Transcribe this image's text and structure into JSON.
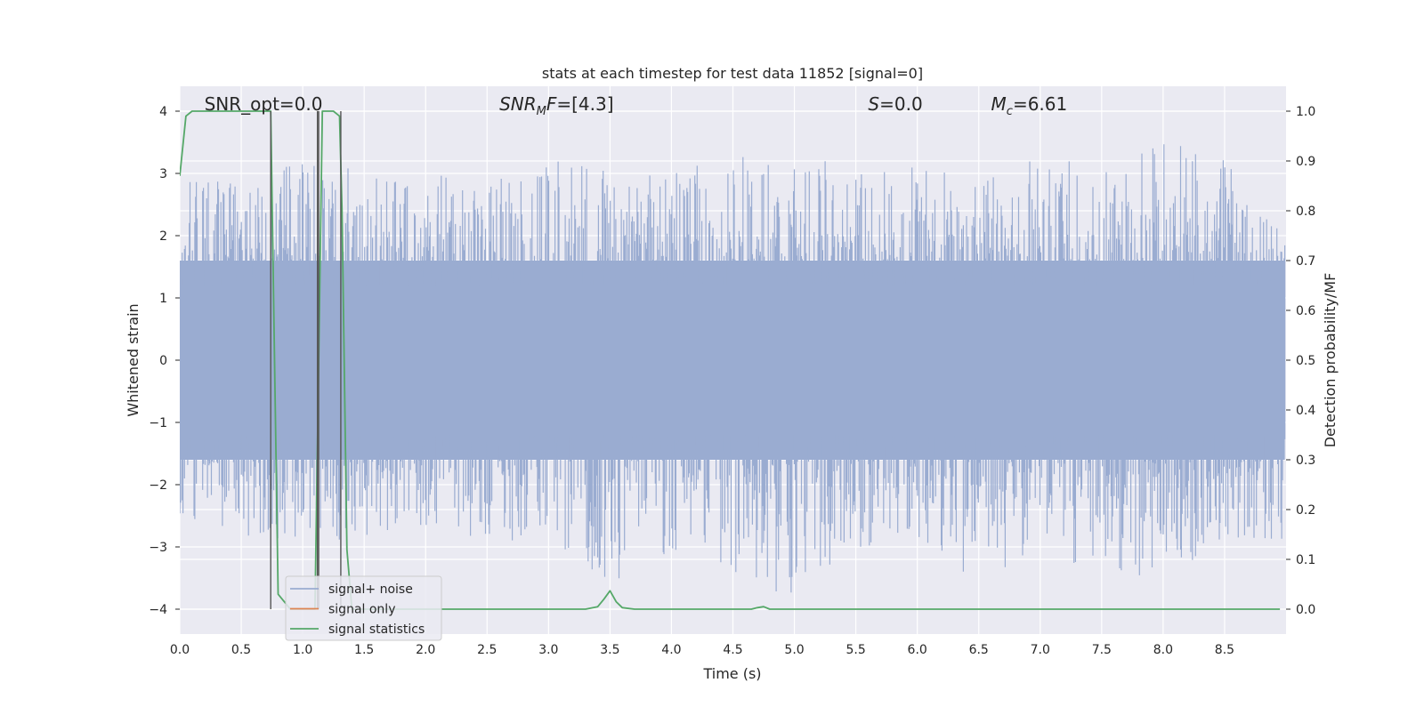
{
  "chart_data": {
    "type": "line",
    "title": "stats at each timestep for test data 11852 [signal=0]",
    "xlabel": "Time (s)",
    "ylabel": "Whitened strain",
    "y2label": "Detection probability/MF",
    "xlim": [
      0.0,
      9.0
    ],
    "ylim": [
      -4.4,
      4.4
    ],
    "y2lim": [
      -0.05,
      1.05
    ],
    "xticks": [
      0.0,
      0.5,
      1.0,
      1.5,
      2.0,
      2.5,
      3.0,
      3.5,
      4.0,
      4.5,
      5.0,
      5.5,
      6.0,
      6.5,
      7.0,
      7.5,
      8.0,
      8.5
    ],
    "xtick_labels": [
      "0.0",
      "0.5",
      "1.0",
      "1.5",
      "2.0",
      "2.5",
      "3.0",
      "3.5",
      "4.0",
      "4.5",
      "5.0",
      "5.5",
      "6.0",
      "6.5",
      "7.0",
      "7.5",
      "8.0",
      "8.5"
    ],
    "yticks": [
      -4,
      -3,
      -2,
      -1,
      0,
      1,
      2,
      3,
      4
    ],
    "ytick_labels": [
      "−4",
      "−3",
      "−2",
      "−1",
      "0",
      "1",
      "2",
      "3",
      "4"
    ],
    "y2ticks": [
      0.0,
      0.1,
      0.2,
      0.3,
      0.4,
      0.5,
      0.6,
      0.7,
      0.8,
      0.9,
      1.0
    ],
    "y2tick_labels": [
      "0.0",
      "0.1",
      "0.2",
      "0.3",
      "0.4",
      "0.5",
      "0.6",
      "0.7",
      "0.8",
      "0.9",
      "1.0"
    ],
    "grid": true,
    "legend_position": "lower-left",
    "annotations": [
      {
        "text_html": "SNR_opt=0.0",
        "x": 0.2
      },
      {
        "text_html": "<tspan font-style=\"italic\">SNR</tspan><tspan font-style=\"italic\" font-size=\"13\" dy=\"5\">M</tspan><tspan font-style=\"italic\" dy=\"-5\">F</tspan>=[4.3]",
        "x": 2.6
      },
      {
        "text_html": "<tspan font-style=\"italic\">S</tspan>=0.0",
        "x": 5.6
      },
      {
        "text_html": "<tspan font-style=\"italic\">M</tspan><tspan font-style=\"italic\" font-size=\"13\" dy=\"5\">c</tspan><tspan dy=\"-5\">=6.61</tspan>",
        "x": 6.6
      }
    ],
    "series": [
      {
        "name": "signal+ noise",
        "color": "#9aacd1",
        "axis": "left",
        "style": "noise",
        "x_start": 0.0,
        "x_end": 8.99,
        "band_core": [
          -1.6,
          1.6
        ],
        "envelope": [
          {
            "x": 0.0,
            "lo": -2.5,
            "hi": 3.0
          },
          {
            "x": 0.5,
            "lo": -2.8,
            "hi": 2.9
          },
          {
            "x": 1.0,
            "lo": -3.0,
            "hi": 3.2
          },
          {
            "x": 1.5,
            "lo": -2.9,
            "hi": 3.1
          },
          {
            "x": 2.0,
            "lo": -2.7,
            "hi": 3.0
          },
          {
            "x": 2.5,
            "lo": -2.9,
            "hi": 2.9
          },
          {
            "x": 3.0,
            "lo": -2.9,
            "hi": 3.3
          },
          {
            "x": 3.5,
            "lo": -3.6,
            "hi": 3.1
          },
          {
            "x": 4.0,
            "lo": -3.1,
            "hi": 3.0
          },
          {
            "x": 4.5,
            "lo": -3.4,
            "hi": 3.3
          },
          {
            "x": 5.0,
            "lo": -3.9,
            "hi": 3.2
          },
          {
            "x": 5.5,
            "lo": -3.0,
            "hi": 3.2
          },
          {
            "x": 6.0,
            "lo": -3.1,
            "hi": 3.2
          },
          {
            "x": 6.5,
            "lo": -3.5,
            "hi": 3.0
          },
          {
            "x": 7.0,
            "lo": -3.1,
            "hi": 3.3
          },
          {
            "x": 7.5,
            "lo": -3.4,
            "hi": 3.1
          },
          {
            "x": 8.0,
            "lo": -3.5,
            "hi": 3.5
          },
          {
            "x": 8.5,
            "lo": -3.0,
            "hi": 3.4
          },
          {
            "x": 8.99,
            "lo": -2.9,
            "hi": 2.0
          }
        ]
      },
      {
        "name": "signal only",
        "color": "#dd8452",
        "axis": "left",
        "style": "line",
        "x": [],
        "y": []
      },
      {
        "name": "signal statistics",
        "color": "#55a868",
        "axis": "right",
        "style": "line",
        "x": [
          0.0,
          0.05,
          0.1,
          0.2,
          0.3,
          0.4,
          0.5,
          0.6,
          0.7,
          0.74,
          0.8,
          0.9,
          1.0,
          1.05,
          1.1,
          1.13,
          1.16,
          1.2,
          1.25,
          1.3,
          1.32,
          1.36,
          1.4,
          1.5,
          2.0,
          2.5,
          3.0,
          3.3,
          3.4,
          3.45,
          3.5,
          3.55,
          3.6,
          3.7,
          4.0,
          4.5,
          4.65,
          4.7,
          4.75,
          4.8,
          4.9,
          5.0,
          6.0,
          7.0,
          8.0,
          8.95
        ],
        "y": [
          0.87,
          0.99,
          1.0,
          1.0,
          1.0,
          1.0,
          1.0,
          1.0,
          1.0,
          1.0,
          0.03,
          0.0,
          0.0,
          0.0,
          0.0,
          0.5,
          1.0,
          1.0,
          1.0,
          0.99,
          0.8,
          0.12,
          0.0,
          0.0,
          0.0,
          0.0,
          0.0,
          0.0,
          0.005,
          0.02,
          0.037,
          0.015,
          0.003,
          0.0,
          0.0,
          0.0,
          0.0,
          0.003,
          0.005,
          0.0,
          0.0,
          0.0,
          0.0,
          0.0,
          0.0,
          0.0
        ]
      },
      {
        "name": "",
        "color": "#555555",
        "axis": "left",
        "style": "vlines",
        "x": [
          0.74,
          1.12,
          1.13,
          1.31
        ],
        "y0": [
          -4.0,
          -4.0,
          -4.0,
          -4.0
        ],
        "y1": [
          4.0,
          4.0,
          4.0,
          4.0
        ]
      }
    ]
  }
}
